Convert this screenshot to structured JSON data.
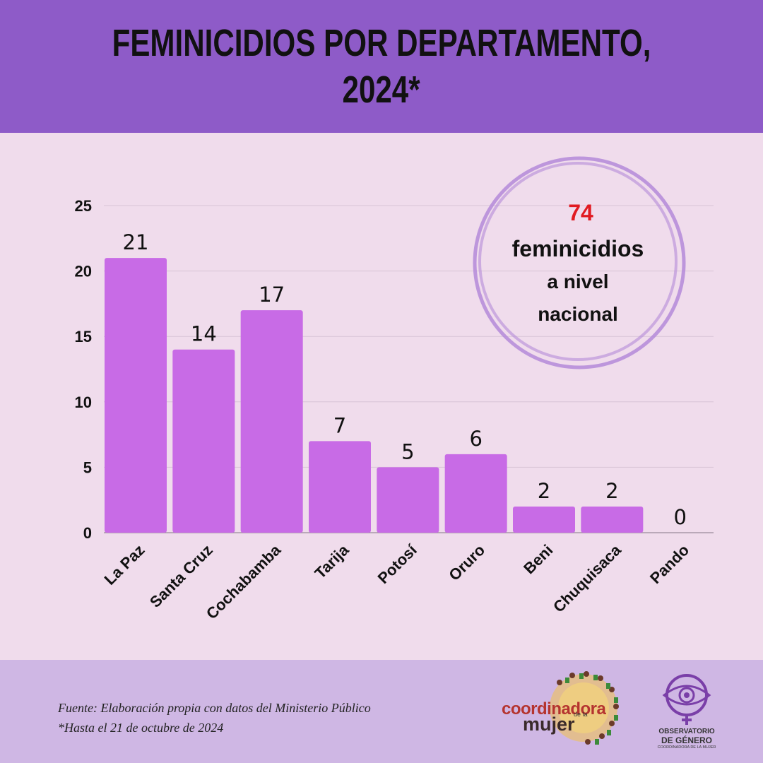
{
  "header": {
    "title_line1": "FEMINICIDIOS POR DEPARTAMENTO,",
    "title_line2": "2024*"
  },
  "callout": {
    "number": "74",
    "line1": "feminicidios",
    "line2": "a nivel",
    "line3": "nacional",
    "number_color": "#e11b22"
  },
  "chart_data": {
    "type": "bar",
    "categories": [
      "La Paz",
      "Santa Cruz",
      "Cochabamba",
      "Tarija",
      "Potosí",
      "Oruro",
      "Beni",
      "Chuquisaca",
      "Pando"
    ],
    "values": [
      21,
      14,
      17,
      7,
      5,
      6,
      2,
      2,
      0
    ],
    "ylim": [
      0,
      25
    ],
    "yticks": [
      0,
      5,
      10,
      15,
      20,
      25
    ],
    "grid": true,
    "bar_color": "#c86be6"
  },
  "footer": {
    "source": "Fuente: Elaboración propia con datos del Ministerio Público",
    "note": "*Hasta el 21 de octubre de 2024",
    "logo1_main": "coordinadora",
    "logo1_small": "de la",
    "logo1_bottom": "mujer",
    "logo2_line1": "OBSERVATORIO",
    "logo2_line2": "DE GÉNERO",
    "logo2_line3": "COORDINADORA DE LA MUJER"
  }
}
